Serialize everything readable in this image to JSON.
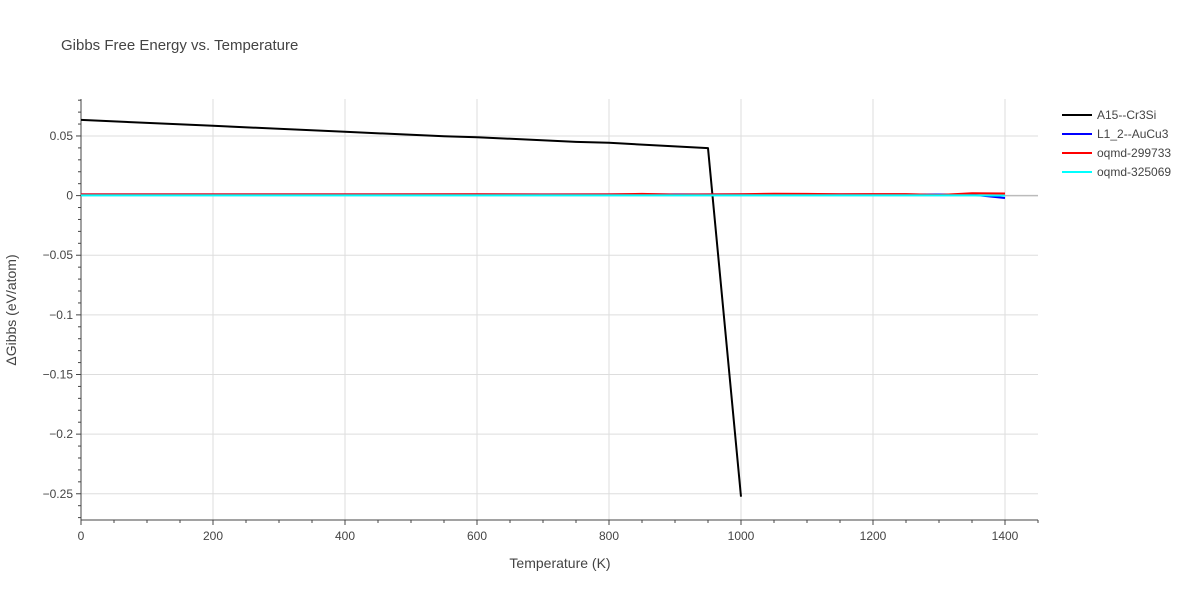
{
  "chart_data": {
    "type": "line",
    "title": "Gibbs Free Energy vs. Temperature",
    "xlabel": "Temperature (K)",
    "ylabel": "ΔGibbs (eV/atom)",
    "xlim": [
      0,
      1450
    ],
    "ylim": [
      -0.272,
      0.081
    ],
    "xticks": [
      0,
      200,
      400,
      600,
      800,
      1000,
      1200,
      1400
    ],
    "xtick_labels": [
      "0",
      "200",
      "400",
      "600",
      "800",
      "1000",
      "1200",
      "1400"
    ],
    "yticks": [
      0.05,
      0,
      -0.05,
      -0.1,
      -0.15,
      -0.2,
      -0.25
    ],
    "ytick_labels": [
      "0.05",
      "0",
      "−0.05",
      "−0.1",
      "−0.15",
      "−0.2",
      "−0.25"
    ],
    "grid": true,
    "legend_position": "top-right",
    "series": [
      {
        "name": "A15--Cr3Si",
        "color": "#000000",
        "x": [
          0,
          200,
          400,
          550,
          600,
          750,
          800,
          950,
          1000
        ],
        "y": [
          0.0635,
          0.0585,
          0.0535,
          0.0498,
          0.049,
          0.045,
          0.0443,
          0.0398,
          -0.2525
        ]
      },
      {
        "name": "L1_2--AuCu3",
        "color": "#0000ff",
        "x": [
          0,
          200,
          400,
          600,
          800,
          1000,
          1200,
          1350,
          1400
        ],
        "y": [
          0.001,
          0.001,
          0.001,
          0.001,
          0.001,
          0.001,
          0.001,
          0.0008,
          -0.002
        ]
      },
      {
        "name": "oqmd-299733",
        "color": "#ff0000",
        "x": [
          0,
          200,
          400,
          600,
          700,
          800,
          850,
          900,
          1000,
          1050,
          1100,
          1150,
          1200,
          1250,
          1300,
          1350,
          1400
        ],
        "y": [
          0.001,
          0.001,
          0.001,
          0.0012,
          0.0009,
          0.001,
          0.0014,
          0.0008,
          0.0012,
          0.0016,
          0.0014,
          0.0012,
          0.0013,
          0.0013,
          0.0005,
          0.002,
          0.0018
        ]
      },
      {
        "name": "oqmd-325069",
        "color": "#00ffff",
        "x": [
          0,
          200,
          400,
          600,
          800,
          1000,
          1200,
          1350,
          1380,
          1400
        ],
        "y": [
          0.0002,
          0.0002,
          0.0002,
          0.0002,
          0.0002,
          0.0002,
          0.0002,
          0.0002,
          0.0001,
          0.0
        ]
      }
    ]
  }
}
